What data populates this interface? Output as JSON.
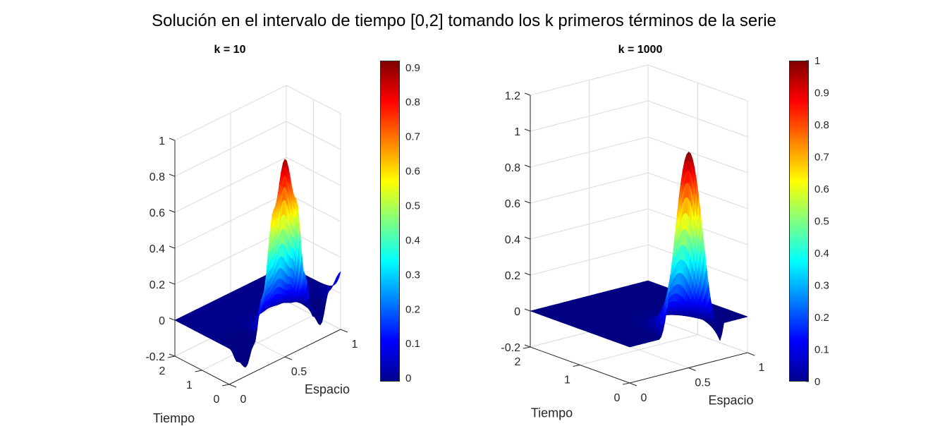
{
  "title": "Solución en el intervalo de tiempo [0,2] tomando los k primeros términos de la serie",
  "chart_data": [
    {
      "type": "surface",
      "title": "k = 10",
      "xlabel": "Espacio",
      "ylabel": "Tiempo",
      "xlim": [
        0,
        1
      ],
      "ylim": [
        0,
        2
      ],
      "zlim": [
        -0.2,
        1
      ],
      "xticks": [
        "0",
        "0.5",
        "1"
      ],
      "yticks": [
        "0",
        "1",
        "2"
      ],
      "zticks": [
        "-0.2",
        "0",
        "0.2",
        "0.4",
        "0.6",
        "0.8",
        "1"
      ],
      "zvalues": [
        -0.2,
        0,
        0.2,
        0.4,
        0.6,
        0.8,
        1
      ],
      "clim": [
        -0.01,
        0.92
      ],
      "colorbar_ticks": [
        "0",
        "0.1",
        "0.2",
        "0.3",
        "0.4",
        "0.5",
        "0.6",
        "0.7",
        "0.8",
        "0.9"
      ],
      "colorbar_values": [
        0,
        0.1,
        0.2,
        0.3,
        0.4,
        0.5,
        0.6,
        0.7,
        0.8,
        0.9
      ],
      "colormap": "jet",
      "peak_value": 0.9,
      "profile_t0": [
        [
          0,
          0
        ],
        [
          0.08,
          -0.1
        ],
        [
          0.15,
          -0.15
        ],
        [
          0.22,
          -0.05
        ],
        [
          0.3,
          0.2
        ],
        [
          0.4,
          0.65
        ],
        [
          0.5,
          0.9
        ],
        [
          0.6,
          0.65
        ],
        [
          0.68,
          0.2
        ],
        [
          0.75,
          -0.05
        ],
        [
          0.82,
          -0.12
        ],
        [
          0.9,
          0.05
        ],
        [
          1,
          0.12
        ]
      ],
      "time_decay_rate": 6
    },
    {
      "type": "surface",
      "title": "k = 1000",
      "xlabel": "Espacio",
      "ylabel": "Tiempo",
      "xlim": [
        0,
        1
      ],
      "ylim": [
        0,
        2
      ],
      "zlim": [
        -0.2,
        1.2
      ],
      "xticks": [
        "0",
        "0.5",
        "1"
      ],
      "yticks": [
        "0",
        "1",
        "2"
      ],
      "zticks": [
        "-0.2",
        "0",
        "0.2",
        "0.4",
        "0.6",
        "0.8",
        "1",
        "1.2"
      ],
      "zvalues": [
        -0.2,
        0,
        0.2,
        0.4,
        0.6,
        0.8,
        1,
        1.2
      ],
      "clim": [
        0,
        1
      ],
      "colorbar_ticks": [
        "0",
        "0.1",
        "0.2",
        "0.3",
        "0.4",
        "0.5",
        "0.6",
        "0.7",
        "0.8",
        "0.9",
        "1"
      ],
      "colorbar_values": [
        0,
        0.1,
        0.2,
        0.3,
        0.4,
        0.5,
        0.6,
        0.7,
        0.8,
        0.9,
        1
      ],
      "colormap": "jet",
      "peak_value": 1.0,
      "profile_t0": [
        [
          0,
          0
        ],
        [
          0.25,
          0
        ],
        [
          0.5,
          1.0
        ],
        [
          0.75,
          0
        ],
        [
          0.77,
          -0.1
        ],
        [
          0.8,
          0
        ],
        [
          1,
          0
        ]
      ],
      "time_decay_rate": 6
    }
  ]
}
